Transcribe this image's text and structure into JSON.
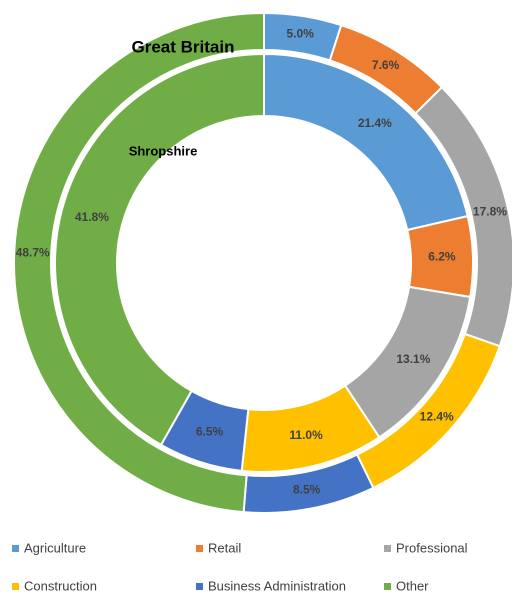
{
  "chart_data": {
    "type": "doughnut",
    "categories": [
      "Agriculture",
      "Retail",
      "Professional",
      "Construction",
      "Business Administration",
      "Other"
    ],
    "colors": [
      "#5b9bd5",
      "#ed7d31",
      "#a5a5a5",
      "#ffc000",
      "#4472c4",
      "#70ad47"
    ],
    "series": [
      {
        "name": "Great Britain",
        "values": [
          5.0,
          7.6,
          17.8,
          12.4,
          8.5,
          48.7
        ],
        "value_labels": [
          "5.0%",
          "7.6%",
          "17.8%",
          "12.4%",
          "8.5%",
          "48.7%"
        ]
      },
      {
        "name": "Shropshire",
        "values": [
          21.4,
          6.2,
          13.1,
          11.0,
          6.5,
          41.8
        ],
        "value_labels": [
          "21.4%",
          "6.2%",
          "13.1%",
          "11.0%",
          "6.5%",
          "41.8%"
        ]
      }
    ],
    "legend": "bottom"
  }
}
